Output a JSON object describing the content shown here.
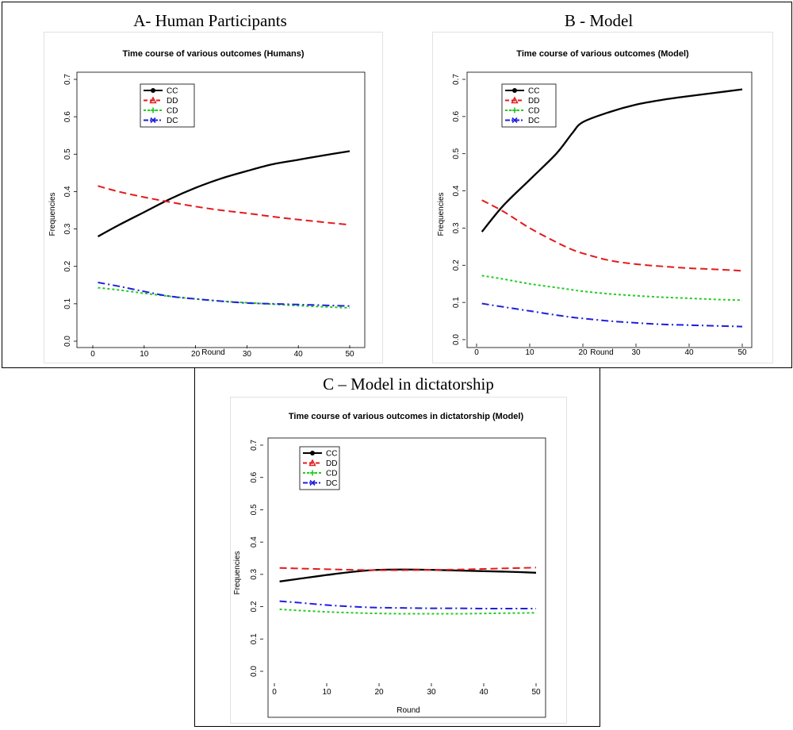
{
  "panels": [
    {
      "label": "A- Human Participants"
    },
    {
      "label": "B - Model"
    },
    {
      "label": "C – Model in dictatorship"
    }
  ],
  "colors": {
    "CC": "#000000",
    "DD": "#e41a1c",
    "CD": "#22cc22",
    "DC": "#1f1fdd"
  },
  "chart_data": [
    {
      "type": "line",
      "title": "Time course of various outcomes (Humans)",
      "xlabel": "Round",
      "ylabel": "Frequencies",
      "xlim": [
        0,
        50
      ],
      "ylim": [
        0,
        0.7
      ],
      "xticks": [
        0,
        10,
        20,
        30,
        40,
        50
      ],
      "yticks": [
        0.0,
        0.1,
        0.2,
        0.3,
        0.4,
        0.5,
        0.6,
        0.7
      ],
      "legend": [
        "CC",
        "DD",
        "CD",
        "DC"
      ],
      "legend_position": "top-left",
      "x": [
        1,
        5,
        10,
        15,
        20,
        25,
        30,
        35,
        40,
        45,
        50
      ],
      "series": [
        {
          "name": "CC",
          "values": [
            0.28,
            0.31,
            0.345,
            0.38,
            0.41,
            0.435,
            0.455,
            0.473,
            0.485,
            0.497,
            0.508
          ]
        },
        {
          "name": "DD",
          "values": [
            0.415,
            0.4,
            0.385,
            0.372,
            0.36,
            0.35,
            0.342,
            0.333,
            0.325,
            0.318,
            0.311
          ]
        },
        {
          "name": "CD",
          "values": [
            0.143,
            0.137,
            0.128,
            0.12,
            0.113,
            0.107,
            0.103,
            0.099,
            0.095,
            0.092,
            0.089
          ]
        },
        {
          "name": "DC",
          "values": [
            0.157,
            0.147,
            0.133,
            0.12,
            0.113,
            0.107,
            0.102,
            0.1,
            0.098,
            0.096,
            0.094
          ]
        }
      ]
    },
    {
      "type": "line",
      "title": "Time course of various outcomes (Model)",
      "xlabel": "Round",
      "ylabel": "Frequencies",
      "xlim": [
        0,
        50
      ],
      "ylim": [
        0,
        0.7
      ],
      "xticks": [
        0,
        10,
        20,
        30,
        40,
        50
      ],
      "yticks": [
        0.0,
        0.1,
        0.2,
        0.3,
        0.4,
        0.5,
        0.6,
        0.7
      ],
      "legend": [
        "CC",
        "DD",
        "CD",
        "DC"
      ],
      "legend_position": "top-left",
      "x": [
        1,
        5,
        10,
        15,
        18,
        20,
        25,
        30,
        35,
        40,
        45,
        50
      ],
      "series": [
        {
          "name": "CC",
          "values": [
            0.29,
            0.36,
            0.43,
            0.5,
            0.555,
            0.585,
            0.612,
            0.632,
            0.645,
            0.655,
            0.664,
            0.673
          ]
        },
        {
          "name": "DD",
          "values": [
            0.375,
            0.345,
            0.3,
            0.262,
            0.242,
            0.232,
            0.213,
            0.203,
            0.197,
            0.192,
            0.189,
            0.185
          ]
        },
        {
          "name": "CD",
          "values": [
            0.172,
            0.163,
            0.15,
            0.14,
            0.134,
            0.13,
            0.123,
            0.118,
            0.114,
            0.111,
            0.108,
            0.106
          ]
        },
        {
          "name": "DC",
          "values": [
            0.097,
            0.088,
            0.077,
            0.066,
            0.06,
            0.057,
            0.05,
            0.045,
            0.041,
            0.039,
            0.037,
            0.035
          ]
        }
      ]
    },
    {
      "type": "line",
      "title": "Time course of various outcomes in dictatorship (Model)",
      "xlabel": "Round",
      "ylabel": "Frequencies",
      "xlim": [
        0,
        50
      ],
      "ylim": [
        0,
        0.7
      ],
      "xticks": [
        0,
        10,
        20,
        30,
        40,
        50
      ],
      "yticks": [
        0.0,
        0.1,
        0.2,
        0.3,
        0.4,
        0.5,
        0.6,
        0.7
      ],
      "legend": [
        "CC",
        "DD",
        "CD",
        "DC"
      ],
      "legend_position": "top-left",
      "x": [
        1,
        5,
        10,
        15,
        20,
        25,
        30,
        35,
        40,
        45,
        50
      ],
      "series": [
        {
          "name": "CC",
          "values": [
            0.278,
            0.287,
            0.298,
            0.308,
            0.314,
            0.315,
            0.314,
            0.312,
            0.31,
            0.308,
            0.305
          ]
        },
        {
          "name": "DD",
          "values": [
            0.32,
            0.318,
            0.316,
            0.314,
            0.313,
            0.313,
            0.314,
            0.315,
            0.317,
            0.319,
            0.321
          ]
        },
        {
          "name": "CD",
          "values": [
            0.192,
            0.188,
            0.184,
            0.181,
            0.179,
            0.178,
            0.178,
            0.178,
            0.179,
            0.18,
            0.181
          ]
        },
        {
          "name": "DC",
          "values": [
            0.217,
            0.212,
            0.205,
            0.2,
            0.197,
            0.196,
            0.195,
            0.195,
            0.194,
            0.194,
            0.194
          ]
        }
      ]
    }
  ]
}
